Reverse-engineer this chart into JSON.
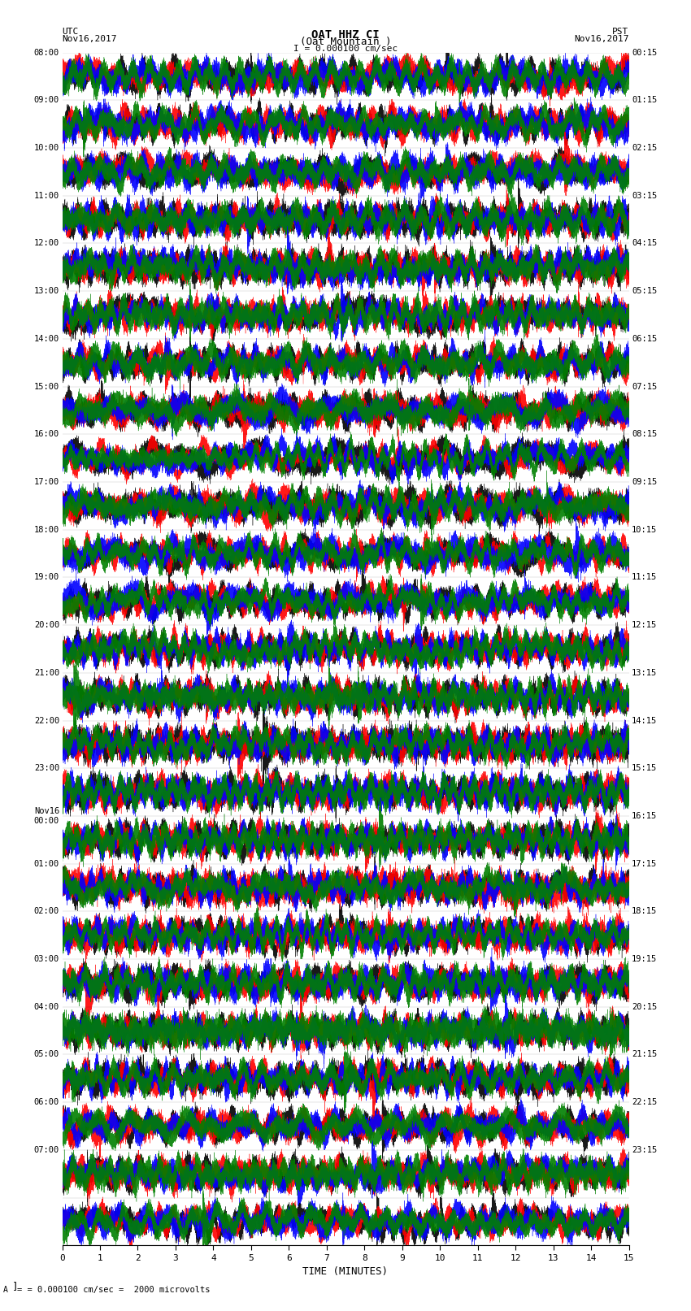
{
  "title_line1": "OAT HHZ CI",
  "title_line2": "(Oat Mountain )",
  "title_scale": "I = 0.000100 cm/sec",
  "left_label_line1": "UTC",
  "left_label_line2": "Nov16,2017",
  "right_label_line1": "PST",
  "right_label_line2": "Nov16,2017",
  "bottom_label": "TIME (MINUTES)",
  "scale_label": "= 0.000100 cm/sec =  2000 microvolts",
  "utc_times": [
    "08:00",
    "09:00",
    "10:00",
    "11:00",
    "12:00",
    "13:00",
    "14:00",
    "15:00",
    "16:00",
    "17:00",
    "18:00",
    "19:00",
    "20:00",
    "21:00",
    "22:00",
    "23:00",
    "Nov16\n00:00",
    "01:00",
    "02:00",
    "03:00",
    "04:00",
    "05:00",
    "06:00",
    "07:00",
    ""
  ],
  "pst_times": [
    "00:15",
    "01:15",
    "02:15",
    "03:15",
    "04:15",
    "05:15",
    "06:15",
    "07:15",
    "08:15",
    "09:15",
    "10:15",
    "11:15",
    "12:15",
    "13:15",
    "14:15",
    "15:15",
    "16:15",
    "17:15",
    "18:15",
    "19:15",
    "20:15",
    "21:15",
    "22:15",
    "23:15",
    ""
  ],
  "n_rows": 25,
  "n_minutes": 15,
  "sample_rate": 100,
  "colors": [
    "black",
    "red",
    "blue",
    "green"
  ],
  "background_color": "white",
  "plot_area_color": "white",
  "x_ticks": [
    0,
    1,
    2,
    3,
    4,
    5,
    6,
    7,
    8,
    9,
    10,
    11,
    12,
    13,
    14,
    15
  ],
  "x_tick_labels": [
    "0",
    "1",
    "2",
    "3",
    "4",
    "5",
    "6",
    "7",
    "8",
    "9",
    "10",
    "11",
    "12",
    "13",
    "14",
    "15"
  ]
}
